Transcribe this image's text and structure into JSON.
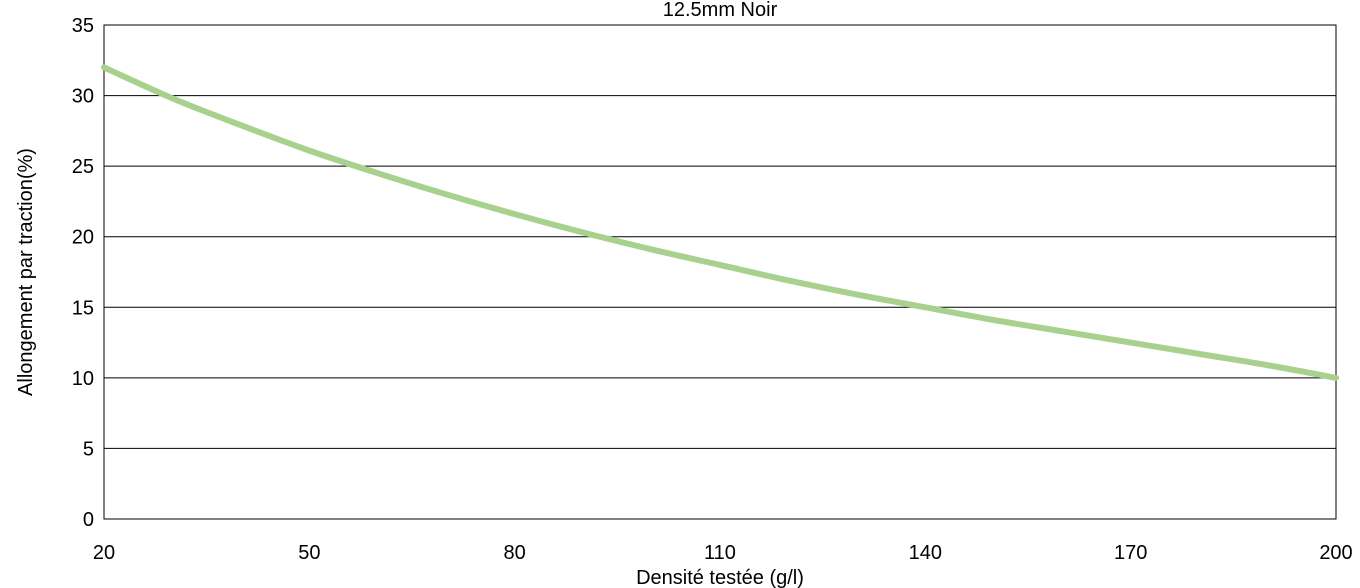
{
  "chart_data": {
    "type": "line",
    "title": "12.5mm Noir",
    "xlabel": "Densité testée (g/l)",
    "ylabel": "Allongement par traction(%)",
    "xlim": [
      20,
      200
    ],
    "ylim": [
      0,
      35
    ],
    "x_ticks": [
      "20",
      "50",
      "80",
      "110",
      "140",
      "170",
      "200"
    ],
    "y_ticks": [
      "0",
      "5",
      "10",
      "15",
      "20",
      "25",
      "30",
      "35"
    ],
    "grid": "horizontal",
    "legend": "none",
    "series": [
      {
        "color": "#a9d18e",
        "x": [
          20,
          30,
          40,
          50,
          60,
          70,
          80,
          90,
          100,
          110,
          120,
          130,
          140,
          150,
          160,
          170,
          180,
          190,
          200
        ],
        "y": [
          32.0,
          29.8,
          27.9,
          26.1,
          24.5,
          23.0,
          21.6,
          20.3,
          19.1,
          18.0,
          16.9,
          15.9,
          15.0,
          14.1,
          13.3,
          12.5,
          11.7,
          10.9,
          10.0
        ]
      }
    ]
  }
}
